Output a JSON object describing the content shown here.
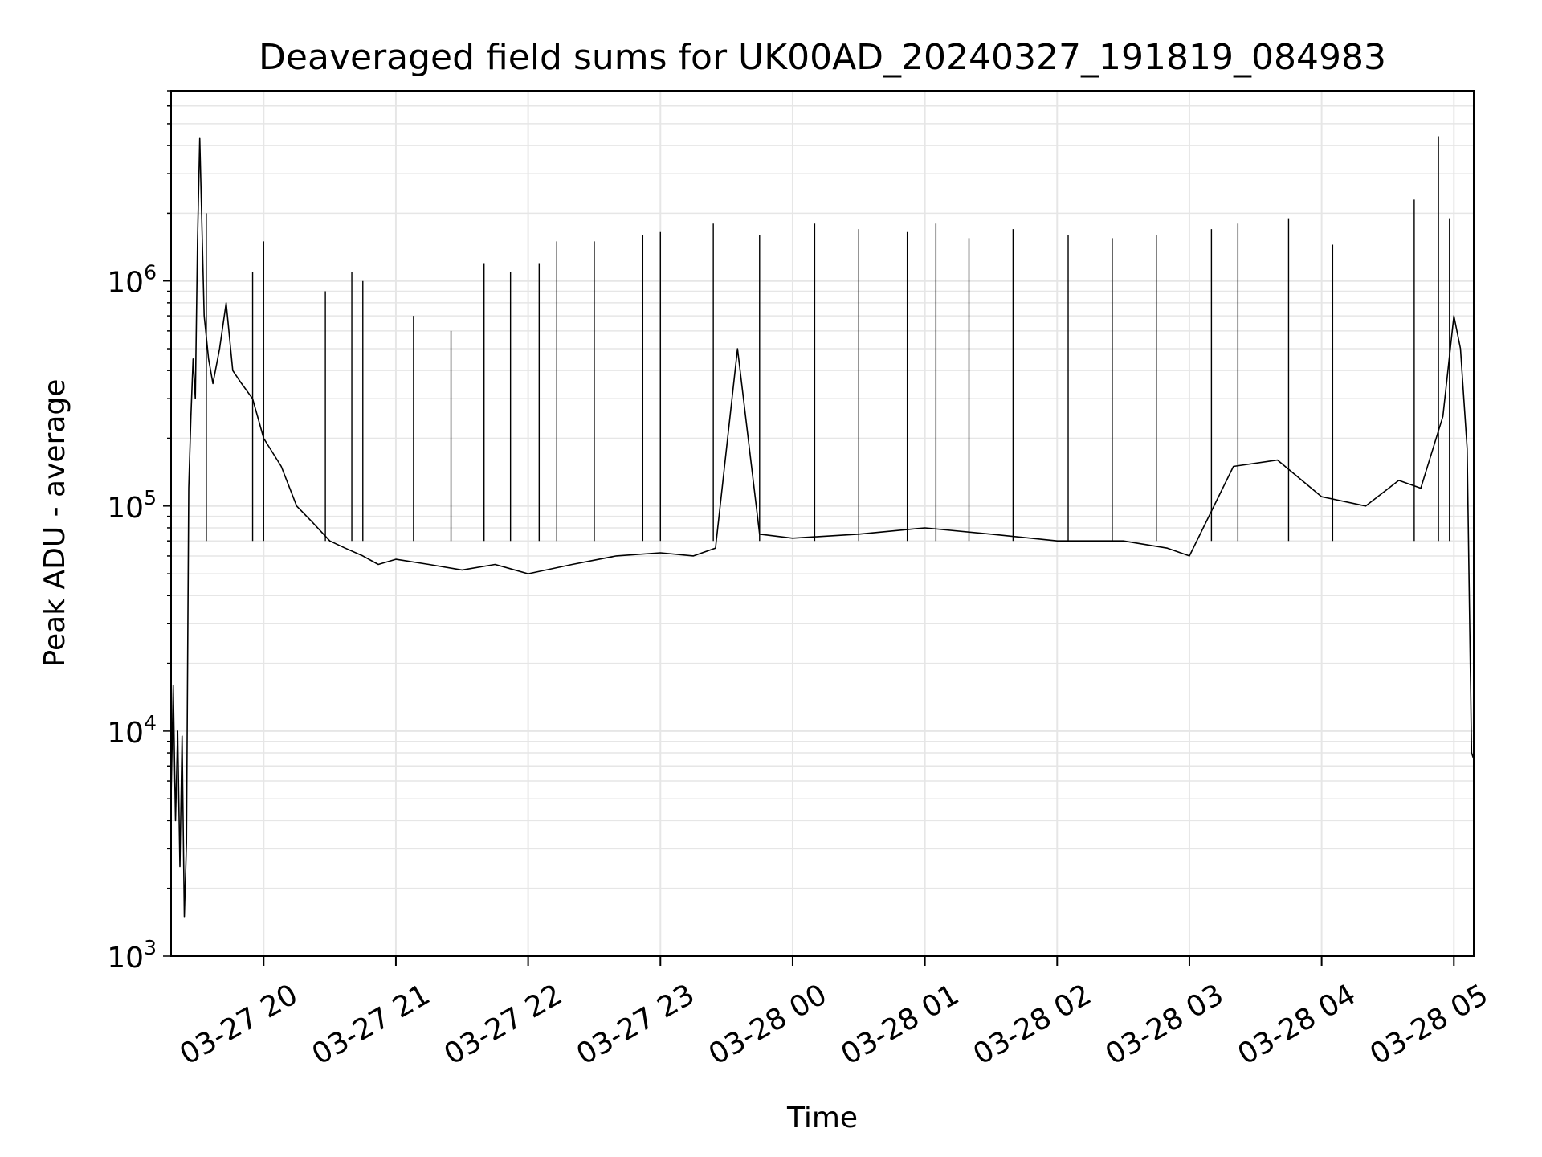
{
  "chart_data": {
    "type": "line",
    "title": "Deaveraged field sums for UK00AD_20240327_191819_084983",
    "xlabel": "Time",
    "ylabel": "Peak ADU - average",
    "yscale": "log",
    "ylim": [
      1000,
      7000000
    ],
    "xlim": [
      "2024-03-27 19:18",
      "2024-03-28 05:09"
    ],
    "grid": true,
    "line_color": "#000000",
    "grid_color": "#e6e6e6",
    "x_ticks": [
      {
        "label": "03-27 20",
        "value": "2024-03-27 20:00"
      },
      {
        "label": "03-27 21",
        "value": "2024-03-27 21:00"
      },
      {
        "label": "03-27 22",
        "value": "2024-03-27 22:00"
      },
      {
        "label": "03-27 23",
        "value": "2024-03-27 23:00"
      },
      {
        "label": "03-28 00",
        "value": "2024-03-28 00:00"
      },
      {
        "label": "03-28 01",
        "value": "2024-03-28 01:00"
      },
      {
        "label": "03-28 02",
        "value": "2024-03-28 02:00"
      },
      {
        "label": "03-28 03",
        "value": "2024-03-28 03:00"
      },
      {
        "label": "03-28 04",
        "value": "2024-03-28 04:00"
      },
      {
        "label": "03-28 05",
        "value": "2024-03-28 05:00"
      }
    ],
    "y_ticks": [
      {
        "base": "10",
        "exp": "3",
        "value": 1000
      },
      {
        "base": "10",
        "exp": "4",
        "value": 10000
      },
      {
        "base": "10",
        "exp": "5",
        "value": 100000
      },
      {
        "base": "10",
        "exp": "6",
        "value": 1000000
      }
    ],
    "series": [
      {
        "x": [
          "2024-03-27 19:18",
          "2024-03-27 19:19",
          "2024-03-27 19:20",
          "2024-03-27 19:21",
          "2024-03-27 19:22",
          "2024-03-27 19:23",
          "2024-03-27 19:24",
          "2024-03-27 19:25",
          "2024-03-27 19:26",
          "2024-03-27 19:27",
          "2024-03-27 19:28",
          "2024-03-27 19:29",
          "2024-03-27 19:30",
          "2024-03-27 19:31",
          "2024-03-27 19:33",
          "2024-03-27 19:35",
          "2024-03-27 19:37",
          "2024-03-27 19:40",
          "2024-03-27 19:43",
          "2024-03-27 19:46",
          "2024-03-27 19:50",
          "2024-03-27 19:55",
          "2024-03-27 20:00",
          "2024-03-27 20:08",
          "2024-03-27 20:15",
          "2024-03-27 20:22",
          "2024-03-27 20:30",
          "2024-03-27 20:37",
          "2024-03-27 20:45",
          "2024-03-27 20:52",
          "2024-03-27 21:00",
          "2024-03-27 21:15",
          "2024-03-27 21:30",
          "2024-03-27 21:45",
          "2024-03-27 22:00",
          "2024-03-27 22:20",
          "2024-03-27 22:40",
          "2024-03-27 23:00",
          "2024-03-27 23:15",
          "2024-03-27 23:25",
          "2024-03-27 23:35",
          "2024-03-27 23:45",
          "2024-03-28 00:00",
          "2024-03-28 00:30",
          "2024-03-28 01:00",
          "2024-03-28 01:30",
          "2024-03-28 02:00",
          "2024-03-28 02:30",
          "2024-03-28 02:50",
          "2024-03-28 03:00",
          "2024-03-28 03:20",
          "2024-03-28 03:40",
          "2024-03-28 04:00",
          "2024-03-28 04:20",
          "2024-03-28 04:35",
          "2024-03-28 04:45",
          "2024-03-28 04:55",
          "2024-03-28 05:00",
          "2024-03-28 05:03",
          "2024-03-28 05:06",
          "2024-03-28 05:08",
          "2024-03-28 05:09"
        ],
        "y": [
          5000,
          16000,
          4000,
          10000,
          2500,
          9500,
          1500,
          3200,
          120000,
          250000,
          450000,
          300000,
          1500000,
          4300000,
          700000,
          450000,
          350000,
          500000,
          800000,
          400000,
          350000,
          300000,
          200000,
          150000,
          100000,
          85000,
          70000,
          65000,
          60000,
          55000,
          58000,
          55000,
          52000,
          55000,
          50000,
          55000,
          60000,
          62000,
          60000,
          65000,
          500000,
          75000,
          72000,
          75000,
          80000,
          75000,
          70000,
          70000,
          65000,
          60000,
          150000,
          160000,
          110000,
          100000,
          130000,
          120000,
          250000,
          700000,
          500000,
          180000,
          8000,
          7500
        ],
        "spikes": [
          {
            "x": "2024-03-27 19:34",
            "y": 2000000
          },
          {
            "x": "2024-03-27 19:55",
            "y": 1100000
          },
          {
            "x": "2024-03-27 20:00",
            "y": 1500000
          },
          {
            "x": "2024-03-27 20:28",
            "y": 900000
          },
          {
            "x": "2024-03-27 20:40",
            "y": 1100000
          },
          {
            "x": "2024-03-27 20:45",
            "y": 1000000
          },
          {
            "x": "2024-03-27 21:08",
            "y": 700000
          },
          {
            "x": "2024-03-27 21:25",
            "y": 600000
          },
          {
            "x": "2024-03-27 21:40",
            "y": 1200000
          },
          {
            "x": "2024-03-27 21:52",
            "y": 1100000
          },
          {
            "x": "2024-03-27 22:05",
            "y": 1200000
          },
          {
            "x": "2024-03-27 22:13",
            "y": 1500000
          },
          {
            "x": "2024-03-27 22:30",
            "y": 1500000
          },
          {
            "x": "2024-03-27 22:52",
            "y": 1600000
          },
          {
            "x": "2024-03-27 23:00",
            "y": 1650000
          },
          {
            "x": "2024-03-27 23:24",
            "y": 1800000
          },
          {
            "x": "2024-03-27 23:45",
            "y": 1600000
          },
          {
            "x": "2024-03-28 00:10",
            "y": 1800000
          },
          {
            "x": "2024-03-28 00:30",
            "y": 1700000
          },
          {
            "x": "2024-03-28 00:52",
            "y": 1650000
          },
          {
            "x": "2024-03-28 01:05",
            "y": 1800000
          },
          {
            "x": "2024-03-28 01:20",
            "y": 1550000
          },
          {
            "x": "2024-03-28 01:40",
            "y": 1700000
          },
          {
            "x": "2024-03-28 02:05",
            "y": 1600000
          },
          {
            "x": "2024-03-28 02:25",
            "y": 1550000
          },
          {
            "x": "2024-03-28 02:45",
            "y": 1600000
          },
          {
            "x": "2024-03-28 03:10",
            "y": 1700000
          },
          {
            "x": "2024-03-28 03:22",
            "y": 1800000
          },
          {
            "x": "2024-03-28 03:45",
            "y": 1900000
          },
          {
            "x": "2024-03-28 04:05",
            "y": 1450000
          },
          {
            "x": "2024-03-28 04:42",
            "y": 2300000
          },
          {
            "x": "2024-03-28 04:53",
            "y": 4400000
          },
          {
            "x": "2024-03-28 04:58",
            "y": 1900000
          }
        ]
      }
    ]
  }
}
